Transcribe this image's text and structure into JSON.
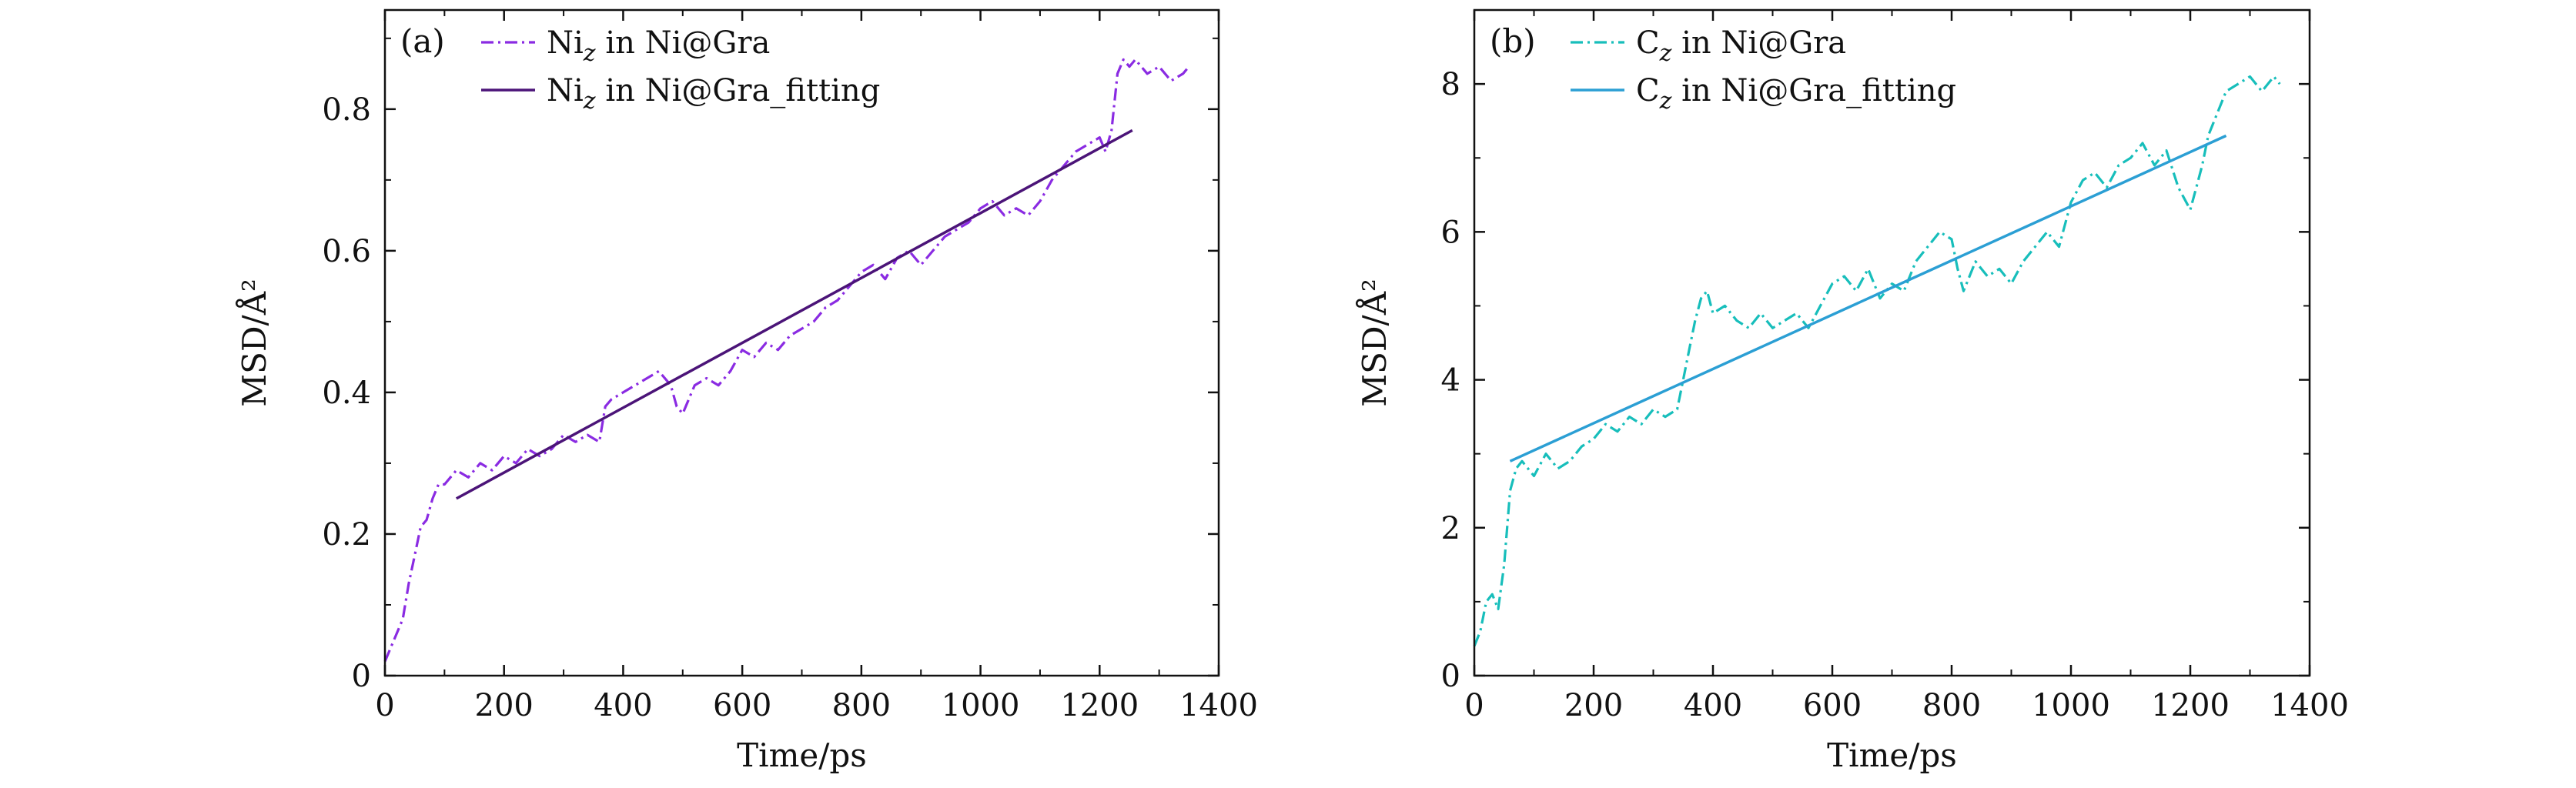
{
  "chart_data": [
    {
      "panel": "(a)",
      "type": "line",
      "xlabel": "Time/ps",
      "ylabel": "MSD/Å²",
      "xlim": [
        0,
        1400
      ],
      "ylim": [
        0,
        0.94
      ],
      "xticks": [
        0,
        200,
        400,
        600,
        800,
        1000,
        1200,
        1400
      ],
      "yticks": [
        0,
        0.2,
        0.4,
        0.6,
        0.8
      ],
      "ytick_labels": [
        "0",
        "0.2",
        "0.4",
        "0.6",
        "0.8"
      ],
      "legend_position": "top-left",
      "series": [
        {
          "name": "Ni_z in Ni@Gra",
          "legend_main": "Ni",
          "legend_sub": "z",
          "legend_rest": " in Ni@Gra",
          "style": "dash-dot",
          "color": "#8a2be2",
          "x": [
            0,
            10,
            20,
            30,
            40,
            50,
            60,
            70,
            80,
            90,
            100,
            110,
            120,
            140,
            160,
            180,
            200,
            220,
            240,
            260,
            280,
            300,
            320,
            340,
            360,
            370,
            380,
            400,
            420,
            440,
            460,
            480,
            490,
            500,
            520,
            540,
            560,
            580,
            600,
            620,
            640,
            660,
            680,
            700,
            720,
            740,
            760,
            780,
            800,
            820,
            840,
            860,
            880,
            900,
            920,
            940,
            960,
            980,
            1000,
            1020,
            1040,
            1060,
            1080,
            1100,
            1120,
            1140,
            1160,
            1180,
            1200,
            1210,
            1220,
            1230,
            1240,
            1250,
            1260,
            1280,
            1300,
            1320,
            1340,
            1350
          ],
          "y": [
            0.02,
            0.04,
            0.06,
            0.08,
            0.13,
            0.17,
            0.21,
            0.22,
            0.25,
            0.27,
            0.27,
            0.28,
            0.29,
            0.28,
            0.3,
            0.29,
            0.31,
            0.3,
            0.32,
            0.31,
            0.32,
            0.34,
            0.33,
            0.34,
            0.33,
            0.38,
            0.39,
            0.4,
            0.41,
            0.42,
            0.43,
            0.41,
            0.38,
            0.37,
            0.41,
            0.42,
            0.41,
            0.43,
            0.46,
            0.45,
            0.47,
            0.46,
            0.48,
            0.49,
            0.5,
            0.52,
            0.53,
            0.55,
            0.57,
            0.58,
            0.56,
            0.59,
            0.6,
            0.58,
            0.6,
            0.62,
            0.63,
            0.64,
            0.66,
            0.67,
            0.65,
            0.66,
            0.65,
            0.67,
            0.7,
            0.72,
            0.74,
            0.75,
            0.76,
            0.74,
            0.77,
            0.85,
            0.87,
            0.86,
            0.87,
            0.85,
            0.86,
            0.84,
            0.85,
            0.86
          ]
        },
        {
          "name": "Ni_z in Ni@Gra_fitting",
          "legend_main": "Ni",
          "legend_sub": "z",
          "legend_rest": " in Ni@Gra_fitting",
          "style": "solid",
          "color": "#4b1478",
          "x": [
            120,
            1255
          ],
          "y": [
            0.25,
            0.77
          ]
        }
      ]
    },
    {
      "panel": "(b)",
      "type": "line",
      "xlabel": "Time/ps",
      "ylabel": "MSD/Å²",
      "xlim": [
        0,
        1400
      ],
      "ylim": [
        0,
        9
      ],
      "xticks": [
        0,
        200,
        400,
        600,
        800,
        1000,
        1200,
        1400
      ],
      "yticks": [
        0,
        2,
        4,
        6,
        8
      ],
      "ytick_labels": [
        "0",
        "2",
        "4",
        "6",
        "8"
      ],
      "legend_position": "top-left",
      "series": [
        {
          "name": "C_z in Ni@Gra",
          "legend_main": "C",
          "legend_sub": "z",
          "legend_rest": " in Ni@Gra",
          "style": "dash-dot",
          "color": "#17bebb",
          "x": [
            0,
            10,
            20,
            30,
            40,
            50,
            60,
            70,
            80,
            100,
            120,
            140,
            160,
            180,
            200,
            220,
            240,
            260,
            280,
            300,
            320,
            340,
            350,
            360,
            370,
            380,
            390,
            400,
            420,
            440,
            460,
            480,
            500,
            520,
            540,
            560,
            580,
            600,
            620,
            640,
            660,
            680,
            700,
            720,
            740,
            760,
            780,
            800,
            810,
            820,
            840,
            860,
            880,
            900,
            920,
            940,
            960,
            980,
            1000,
            1020,
            1040,
            1060,
            1080,
            1100,
            1120,
            1140,
            1160,
            1180,
            1200,
            1210,
            1220,
            1230,
            1240,
            1260,
            1280,
            1300,
            1320,
            1340,
            1350
          ],
          "y": [
            0.4,
            0.6,
            1.0,
            1.1,
            0.9,
            1.5,
            2.5,
            2.8,
            2.9,
            2.7,
            3.0,
            2.8,
            2.9,
            3.1,
            3.2,
            3.4,
            3.3,
            3.5,
            3.4,
            3.6,
            3.5,
            3.6,
            4.0,
            4.4,
            4.8,
            5.1,
            5.2,
            4.9,
            5.0,
            4.8,
            4.7,
            4.9,
            4.7,
            4.8,
            4.9,
            4.7,
            5.0,
            5.3,
            5.4,
            5.2,
            5.5,
            5.1,
            5.3,
            5.2,
            5.6,
            5.8,
            6.0,
            5.9,
            5.5,
            5.2,
            5.6,
            5.4,
            5.5,
            5.3,
            5.6,
            5.8,
            6.0,
            5.8,
            6.4,
            6.7,
            6.8,
            6.6,
            6.9,
            7.0,
            7.2,
            6.9,
            7.1,
            6.6,
            6.3,
            6.6,
            6.9,
            7.3,
            7.5,
            7.9,
            8.0,
            8.1,
            7.9,
            8.1,
            8.0
          ]
        },
        {
          "name": "C_z in Ni@Gra_fitting",
          "legend_main": "C",
          "legend_sub": "z",
          "legend_rest": " in Ni@Gra_fitting",
          "style": "solid",
          "color": "#2b9fd4",
          "x": [
            60,
            1260
          ],
          "y": [
            2.9,
            7.3
          ]
        }
      ]
    }
  ]
}
